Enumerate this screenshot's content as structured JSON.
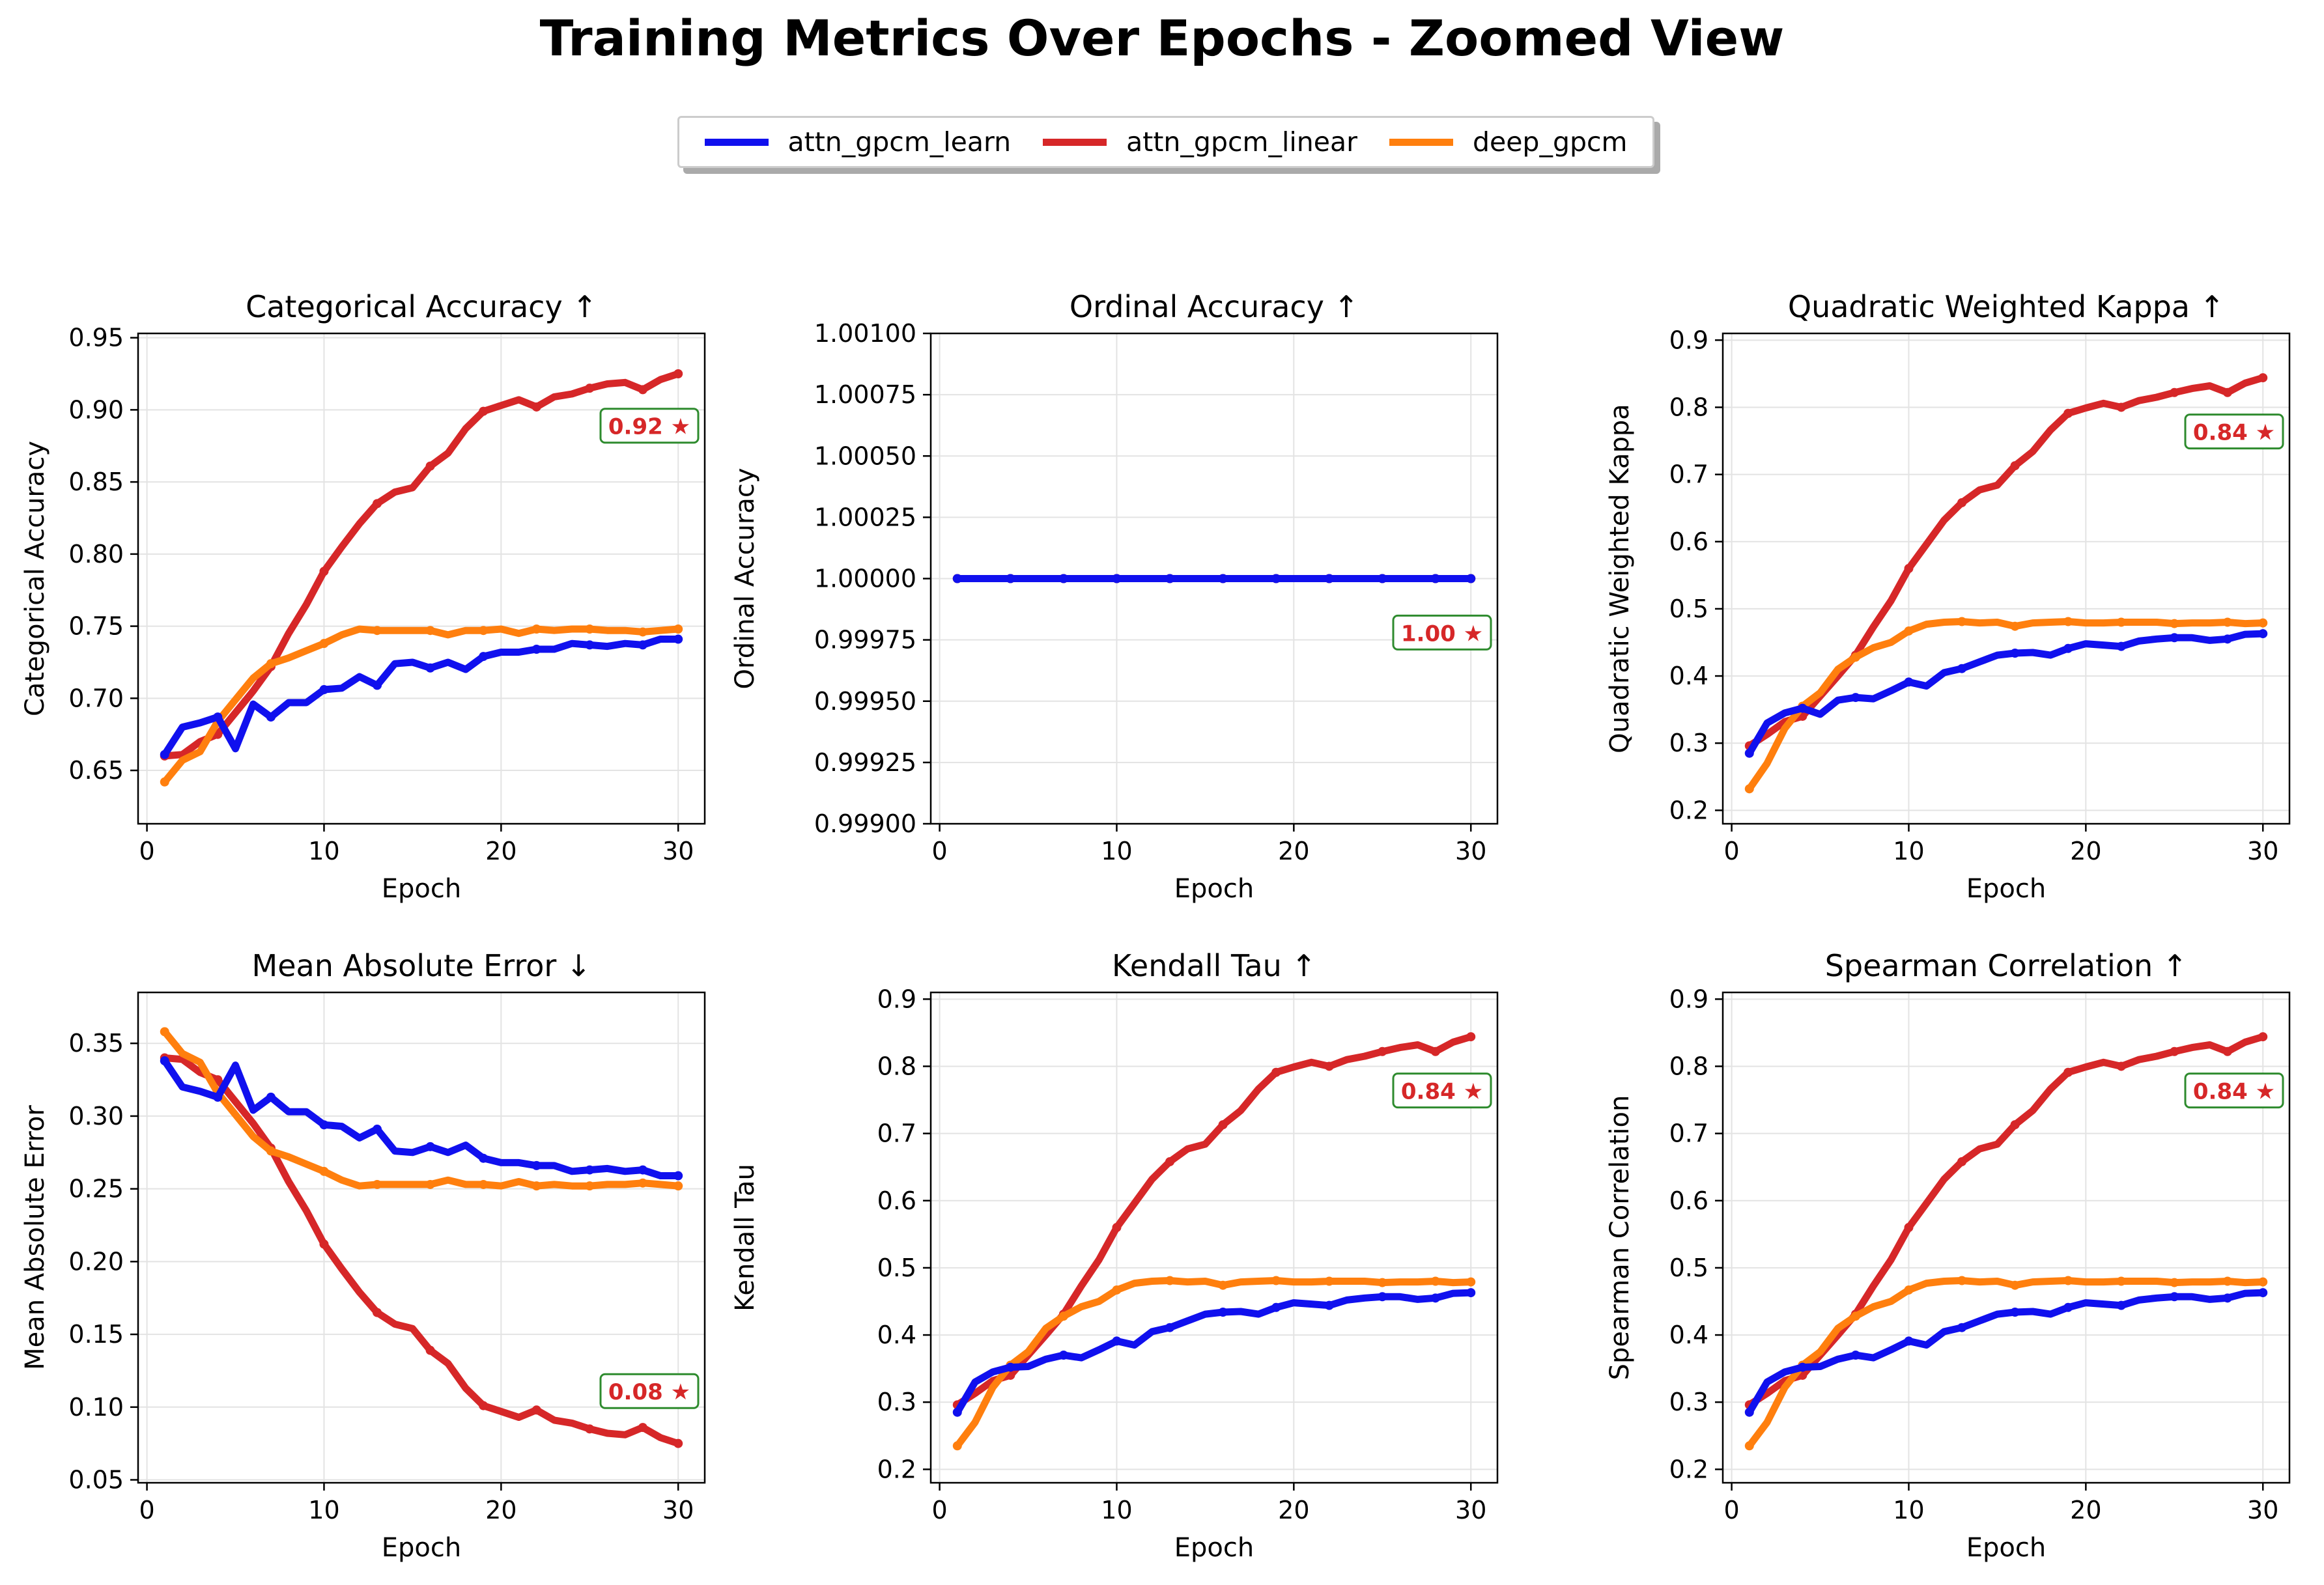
{
  "figure": {
    "title": "Training Metrics Over Epochs - Zoomed View",
    "legend": [
      {
        "label": "attn_gpcm_learn",
        "color": "#1010ee"
      },
      {
        "label": "attn_gpcm_linear",
        "color": "#d62728"
      },
      {
        "label": "deep_gpcm",
        "color": "#ff7f0e"
      }
    ]
  },
  "chart_data": [
    {
      "type": "line",
      "title": "Categorical Accuracy ↑",
      "xlabel": "Epoch",
      "ylabel": "Categorical Accuracy",
      "xlim": [
        -0.5,
        31.5
      ],
      "ylim": [
        0.613,
        0.953
      ],
      "xticks": [
        0,
        10,
        20,
        30
      ],
      "yticks": [
        0.65,
        0.7,
        0.75,
        0.8,
        0.85,
        0.9,
        0.95
      ],
      "ytick_labels": [
        "0.65",
        "0.70",
        "0.75",
        "0.80",
        "0.85",
        "0.90",
        "0.95"
      ],
      "grid": true,
      "best_label": "0.92 ★",
      "x": [
        1,
        2,
        3,
        4,
        5,
        6,
        7,
        8,
        9,
        10,
        11,
        12,
        13,
        14,
        15,
        16,
        17,
        18,
        19,
        20,
        21,
        22,
        23,
        24,
        25,
        26,
        27,
        28,
        29,
        30
      ],
      "series": [
        {
          "name": "attn_gpcm_learn",
          "values": [
            0.661,
            0.68,
            0.683,
            0.687,
            0.665,
            0.696,
            0.687,
            0.697,
            0.697,
            0.706,
            0.707,
            0.715,
            0.709,
            0.724,
            0.725,
            0.721,
            0.725,
            0.72,
            0.729,
            0.732,
            0.732,
            0.734,
            0.734,
            0.738,
            0.737,
            0.736,
            0.738,
            0.737,
            0.741,
            0.741
          ]
        },
        {
          "name": "attn_gpcm_linear",
          "values": [
            0.66,
            0.661,
            0.67,
            0.675,
            0.69,
            0.705,
            0.722,
            0.745,
            0.765,
            0.788,
            0.805,
            0.821,
            0.835,
            0.843,
            0.846,
            0.861,
            0.87,
            0.887,
            0.899,
            0.903,
            0.907,
            0.902,
            0.909,
            0.911,
            0.915,
            0.918,
            0.919,
            0.914,
            0.921,
            0.925
          ]
        },
        {
          "name": "deep_gpcm",
          "values": [
            0.642,
            0.657,
            0.663,
            0.684,
            0.699,
            0.714,
            0.724,
            0.728,
            0.733,
            0.738,
            0.744,
            0.748,
            0.747,
            0.747,
            0.747,
            0.747,
            0.744,
            0.747,
            0.747,
            0.748,
            0.745,
            0.748,
            0.747,
            0.748,
            0.748,
            0.747,
            0.747,
            0.746,
            0.747,
            0.748
          ]
        }
      ]
    },
    {
      "type": "line",
      "title": "Ordinal Accuracy ↑",
      "xlabel": "Epoch",
      "ylabel": "Ordinal Accuracy",
      "xlim": [
        -0.5,
        31.5
      ],
      "ylim": [
        0.999,
        1.001
      ],
      "xticks": [
        0,
        10,
        20,
        30
      ],
      "yticks": [
        0.999,
        0.99925,
        0.9995,
        0.99975,
        1.0,
        1.00025,
        1.0005,
        1.00075,
        1.001
      ],
      "ytick_labels": [
        "0.99900",
        "0.99925",
        "0.99950",
        "0.99975",
        "1.00000",
        "1.00025",
        "1.00050",
        "1.00075",
        "1.00100"
      ],
      "grid": true,
      "best_label": "1.00 ★",
      "x": [
        1,
        2,
        3,
        4,
        5,
        6,
        7,
        8,
        9,
        10,
        11,
        12,
        13,
        14,
        15,
        16,
        17,
        18,
        19,
        20,
        21,
        22,
        23,
        24,
        25,
        26,
        27,
        28,
        29,
        30
      ],
      "series": [
        {
          "name": "attn_gpcm_learn",
          "values": [
            1,
            1,
            1,
            1,
            1,
            1,
            1,
            1,
            1,
            1,
            1,
            1,
            1,
            1,
            1,
            1,
            1,
            1,
            1,
            1,
            1,
            1,
            1,
            1,
            1,
            1,
            1,
            1,
            1,
            1
          ]
        },
        {
          "name": "attn_gpcm_linear",
          "values": [
            1,
            1,
            1,
            1,
            1,
            1,
            1,
            1,
            1,
            1,
            1,
            1,
            1,
            1,
            1,
            1,
            1,
            1,
            1,
            1,
            1,
            1,
            1,
            1,
            1,
            1,
            1,
            1,
            1,
            1
          ]
        },
        {
          "name": "deep_gpcm",
          "values": [
            1,
            1,
            1,
            1,
            1,
            1,
            1,
            1,
            1,
            1,
            1,
            1,
            1,
            1,
            1,
            1,
            1,
            1,
            1,
            1,
            1,
            1,
            1,
            1,
            1,
            1,
            1,
            1,
            1,
            1
          ]
        }
      ]
    },
    {
      "type": "line",
      "title": "Quadratic Weighted Kappa ↑",
      "xlabel": "Epoch",
      "ylabel": "Quadratic Weighted Kappa",
      "xlim": [
        -0.5,
        31.5
      ],
      "ylim": [
        0.18,
        0.91
      ],
      "xticks": [
        0,
        10,
        20,
        30
      ],
      "yticks": [
        0.2,
        0.3,
        0.4,
        0.5,
        0.6,
        0.7,
        0.8,
        0.9
      ],
      "ytick_labels": [
        "0.2",
        "0.3",
        "0.4",
        "0.5",
        "0.6",
        "0.7",
        "0.8",
        "0.9"
      ],
      "grid": true,
      "best_label": "0.84 ★",
      "x": [
        1,
        2,
        3,
        4,
        5,
        6,
        7,
        8,
        9,
        10,
        11,
        12,
        13,
        14,
        15,
        16,
        17,
        18,
        19,
        20,
        21,
        22,
        23,
        24,
        25,
        26,
        27,
        28,
        29,
        30
      ],
      "series": [
        {
          "name": "attn_gpcm_learn",
          "values": [
            0.285,
            0.33,
            0.345,
            0.352,
            0.343,
            0.364,
            0.368,
            0.366,
            0.378,
            0.391,
            0.385,
            0.405,
            0.411,
            0.421,
            0.431,
            0.434,
            0.435,
            0.431,
            0.441,
            0.448,
            0.446,
            0.444,
            0.452,
            0.455,
            0.457,
            0.457,
            0.453,
            0.455,
            0.462,
            0.463
          ]
        },
        {
          "name": "attn_gpcm_linear",
          "values": [
            0.296,
            0.313,
            0.332,
            0.34,
            0.37,
            0.4,
            0.431,
            0.473,
            0.512,
            0.56,
            0.596,
            0.632,
            0.658,
            0.677,
            0.684,
            0.713,
            0.734,
            0.766,
            0.791,
            0.799,
            0.806,
            0.8,
            0.81,
            0.815,
            0.822,
            0.828,
            0.832,
            0.822,
            0.836,
            0.844
          ]
        },
        {
          "name": "deep_gpcm",
          "values": [
            0.232,
            0.27,
            0.322,
            0.355,
            0.375,
            0.41,
            0.428,
            0.442,
            0.45,
            0.467,
            0.477,
            0.48,
            0.481,
            0.479,
            0.48,
            0.474,
            0.479,
            0.48,
            0.481,
            0.479,
            0.479,
            0.48,
            0.48,
            0.48,
            0.478,
            0.479,
            0.479,
            0.48,
            0.478,
            0.479
          ]
        }
      ]
    },
    {
      "type": "line",
      "title": "Mean Absolute Error ↓",
      "xlabel": "Epoch",
      "ylabel": "Mean Absolute Error",
      "xlim": [
        -0.5,
        31.5
      ],
      "ylim": [
        0.048,
        0.385
      ],
      "xticks": [
        0,
        10,
        20,
        30
      ],
      "yticks": [
        0.05,
        0.1,
        0.15,
        0.2,
        0.25,
        0.3,
        0.35
      ],
      "ytick_labels": [
        "0.05",
        "0.10",
        "0.15",
        "0.20",
        "0.25",
        "0.30",
        "0.35"
      ],
      "grid": true,
      "best_label": "0.08 ★",
      "x": [
        1,
        2,
        3,
        4,
        5,
        6,
        7,
        8,
        9,
        10,
        11,
        12,
        13,
        14,
        15,
        16,
        17,
        18,
        19,
        20,
        21,
        22,
        23,
        24,
        25,
        26,
        27,
        28,
        29,
        30
      ],
      "series": [
        {
          "name": "attn_gpcm_learn",
          "values": [
            0.338,
            0.32,
            0.317,
            0.313,
            0.335,
            0.304,
            0.313,
            0.303,
            0.303,
            0.294,
            0.293,
            0.285,
            0.291,
            0.276,
            0.275,
            0.279,
            0.275,
            0.28,
            0.271,
            0.268,
            0.268,
            0.266,
            0.266,
            0.262,
            0.263,
            0.264,
            0.262,
            0.263,
            0.259,
            0.259
          ]
        },
        {
          "name": "attn_gpcm_linear",
          "values": [
            0.34,
            0.339,
            0.33,
            0.325,
            0.31,
            0.295,
            0.278,
            0.255,
            0.235,
            0.212,
            0.195,
            0.179,
            0.165,
            0.157,
            0.154,
            0.139,
            0.13,
            0.113,
            0.101,
            0.097,
            0.093,
            0.098,
            0.091,
            0.089,
            0.085,
            0.082,
            0.081,
            0.086,
            0.079,
            0.075
          ]
        },
        {
          "name": "deep_gpcm",
          "values": [
            0.358,
            0.343,
            0.337,
            0.316,
            0.301,
            0.286,
            0.276,
            0.272,
            0.267,
            0.262,
            0.256,
            0.252,
            0.253,
            0.253,
            0.253,
            0.253,
            0.256,
            0.253,
            0.253,
            0.252,
            0.255,
            0.252,
            0.253,
            0.252,
            0.252,
            0.253,
            0.253,
            0.254,
            0.253,
            0.252
          ]
        }
      ]
    },
    {
      "type": "line",
      "title": "Kendall Tau ↑",
      "xlabel": "Epoch",
      "ylabel": "Kendall Tau",
      "xlim": [
        -0.5,
        31.5
      ],
      "ylim": [
        0.18,
        0.91
      ],
      "xticks": [
        0,
        10,
        20,
        30
      ],
      "yticks": [
        0.2,
        0.3,
        0.4,
        0.5,
        0.6,
        0.7,
        0.8,
        0.9
      ],
      "ytick_labels": [
        "0.2",
        "0.3",
        "0.4",
        "0.5",
        "0.6",
        "0.7",
        "0.8",
        "0.9"
      ],
      "grid": true,
      "best_label": "0.84 ★",
      "x": [
        1,
        2,
        3,
        4,
        5,
        6,
        7,
        8,
        9,
        10,
        11,
        12,
        13,
        14,
        15,
        16,
        17,
        18,
        19,
        20,
        21,
        22,
        23,
        24,
        25,
        26,
        27,
        28,
        29,
        30
      ],
      "series": [
        {
          "name": "attn_gpcm_learn",
          "values": [
            0.285,
            0.33,
            0.345,
            0.352,
            0.353,
            0.364,
            0.37,
            0.366,
            0.378,
            0.391,
            0.385,
            0.405,
            0.411,
            0.421,
            0.431,
            0.434,
            0.435,
            0.431,
            0.441,
            0.448,
            0.446,
            0.444,
            0.452,
            0.455,
            0.457,
            0.457,
            0.453,
            0.455,
            0.462,
            0.463
          ]
        },
        {
          "name": "attn_gpcm_linear",
          "values": [
            0.296,
            0.313,
            0.332,
            0.34,
            0.37,
            0.4,
            0.431,
            0.473,
            0.512,
            0.56,
            0.596,
            0.632,
            0.658,
            0.677,
            0.684,
            0.713,
            0.734,
            0.766,
            0.791,
            0.799,
            0.806,
            0.8,
            0.81,
            0.815,
            0.822,
            0.828,
            0.832,
            0.822,
            0.836,
            0.844
          ]
        },
        {
          "name": "deep_gpcm",
          "values": [
            0.235,
            0.27,
            0.322,
            0.355,
            0.375,
            0.41,
            0.428,
            0.442,
            0.45,
            0.467,
            0.477,
            0.48,
            0.481,
            0.479,
            0.48,
            0.474,
            0.479,
            0.48,
            0.481,
            0.479,
            0.479,
            0.48,
            0.48,
            0.48,
            0.478,
            0.479,
            0.479,
            0.48,
            0.478,
            0.479
          ]
        }
      ]
    },
    {
      "type": "line",
      "title": "Spearman Correlation ↑",
      "xlabel": "Epoch",
      "ylabel": "Spearman Correlation",
      "xlim": [
        -0.5,
        31.5
      ],
      "ylim": [
        0.18,
        0.91
      ],
      "xticks": [
        0,
        10,
        20,
        30
      ],
      "yticks": [
        0.2,
        0.3,
        0.4,
        0.5,
        0.6,
        0.7,
        0.8,
        0.9
      ],
      "ytick_labels": [
        "0.2",
        "0.3",
        "0.4",
        "0.5",
        "0.6",
        "0.7",
        "0.8",
        "0.9"
      ],
      "grid": true,
      "best_label": "0.84 ★",
      "x": [
        1,
        2,
        3,
        4,
        5,
        6,
        7,
        8,
        9,
        10,
        11,
        12,
        13,
        14,
        15,
        16,
        17,
        18,
        19,
        20,
        21,
        22,
        23,
        24,
        25,
        26,
        27,
        28,
        29,
        30
      ],
      "series": [
        {
          "name": "attn_gpcm_learn",
          "values": [
            0.285,
            0.33,
            0.345,
            0.352,
            0.353,
            0.364,
            0.37,
            0.366,
            0.378,
            0.391,
            0.385,
            0.405,
            0.411,
            0.421,
            0.431,
            0.434,
            0.435,
            0.431,
            0.441,
            0.448,
            0.446,
            0.444,
            0.452,
            0.455,
            0.457,
            0.457,
            0.453,
            0.455,
            0.462,
            0.463
          ]
        },
        {
          "name": "attn_gpcm_linear",
          "values": [
            0.296,
            0.313,
            0.332,
            0.34,
            0.37,
            0.4,
            0.431,
            0.473,
            0.512,
            0.56,
            0.596,
            0.632,
            0.658,
            0.677,
            0.684,
            0.713,
            0.734,
            0.766,
            0.791,
            0.799,
            0.806,
            0.8,
            0.81,
            0.815,
            0.822,
            0.828,
            0.832,
            0.822,
            0.836,
            0.844
          ]
        },
        {
          "name": "deep_gpcm",
          "values": [
            0.235,
            0.27,
            0.322,
            0.355,
            0.375,
            0.41,
            0.428,
            0.442,
            0.45,
            0.467,
            0.477,
            0.48,
            0.481,
            0.479,
            0.48,
            0.474,
            0.479,
            0.48,
            0.481,
            0.479,
            0.479,
            0.48,
            0.48,
            0.48,
            0.478,
            0.479,
            0.479,
            0.48,
            0.478,
            0.479
          ]
        }
      ]
    }
  ]
}
